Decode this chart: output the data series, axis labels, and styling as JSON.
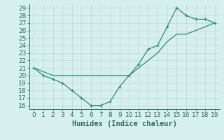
{
  "xlabel": "Humidex (Indice chaleur)",
  "ylabel": "",
  "xlim": [
    -0.5,
    19.5
  ],
  "ylim": [
    15.5,
    29.5
  ],
  "xticks": [
    0,
    1,
    2,
    3,
    4,
    5,
    6,
    7,
    8,
    9,
    10,
    11,
    12,
    13,
    14,
    15,
    16,
    17,
    18,
    19
  ],
  "yticks": [
    16,
    17,
    18,
    19,
    20,
    21,
    22,
    23,
    24,
    25,
    26,
    27,
    28,
    29
  ],
  "line1_x": [
    0,
    1,
    2,
    3,
    4,
    5,
    6,
    7,
    8,
    9,
    10,
    11,
    12,
    13,
    14,
    15,
    16,
    17,
    18,
    19
  ],
  "line1_y": [
    21,
    20,
    19.5,
    19,
    18,
    17,
    16,
    16,
    16.5,
    18.5,
    20,
    21.5,
    23.5,
    24,
    26.5,
    29,
    28,
    27.5,
    27.5,
    27
  ],
  "line2_x": [
    0,
    2,
    3,
    4,
    5,
    6,
    7,
    8,
    9,
    10,
    11,
    12,
    13,
    14,
    15,
    16,
    17,
    18,
    19
  ],
  "line2_y": [
    21,
    20,
    20,
    20,
    20,
    20,
    20,
    20,
    20,
    20,
    21,
    22,
    23,
    24.5,
    25.5,
    25.5,
    26,
    26.5,
    27
  ],
  "line_color": "#2e8b7a",
  "bg_color": "#d6f0ee",
  "grid_color": "#c0d8d4",
  "tick_fontsize": 6.5,
  "xlabel_fontsize": 7.5
}
